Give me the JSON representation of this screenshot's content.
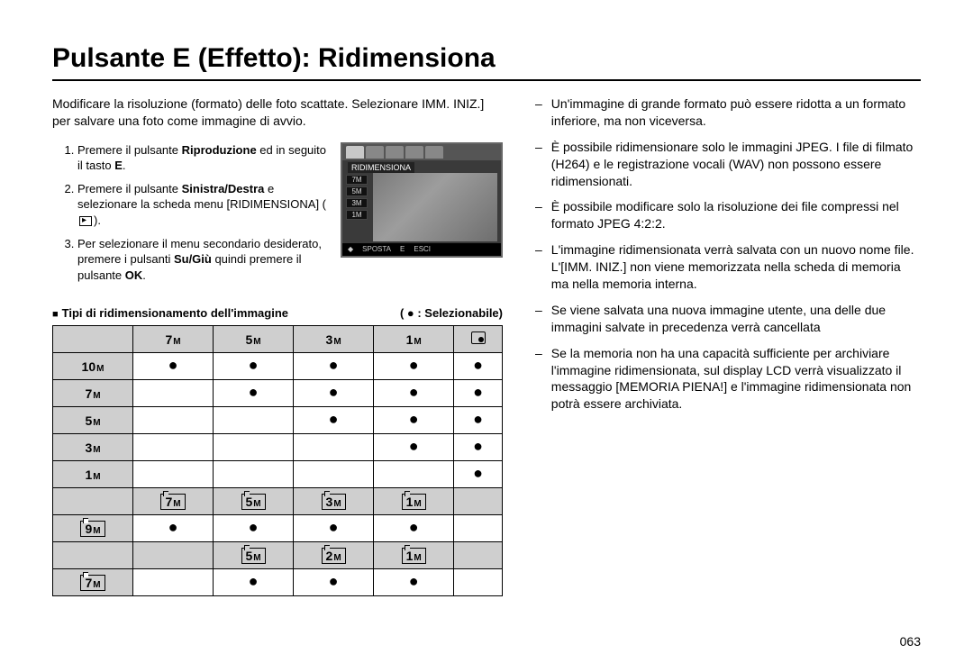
{
  "title": "Pulsante E (Effetto): Ridimensiona",
  "intro": "Modificare la risoluzione (formato) delle foto scattate. Selezionare IMM. INIZ.] per salvare una foto come immagine di avvio.",
  "steps": [
    {
      "num": "1.",
      "pre": "Premere il pulsante ",
      "bold": "Riproduzione",
      "post": " ed in seguito il tasto ",
      "bold2": "E",
      "post2": "."
    },
    {
      "num": "2.",
      "pre": "Premere il pulsante ",
      "bold": "Sinistra/Destra",
      "post": " e selezionare la scheda menu [RIDIMENSIONA] (",
      "icon": true,
      "post2": ")."
    },
    {
      "num": "3.",
      "pre": "Per selezionare il menu secondario desiderato, premere i pulsanti ",
      "bold": "Su/Giù",
      "post": " quindi premere il pulsante ",
      "bold2": "OK",
      "post2": "."
    }
  ],
  "screenshot": {
    "label": "RIDIMENSIONA",
    "side": [
      "7M",
      "5M",
      "3M",
      "1M"
    ],
    "footer_left": "SPOSTA",
    "footer_e": "E",
    "footer_right": "ESCI"
  },
  "subhead_left": "Tipi di ridimensionamento dell'immagine",
  "subhead_right": "(  ●  : Selezionabile)",
  "table1": {
    "cols": [
      "7",
      "5",
      "3",
      "1",
      "start"
    ],
    "rows": [
      {
        "h": "10",
        "cells": [
          true,
          true,
          true,
          true,
          true
        ]
      },
      {
        "h": "7",
        "cells": [
          null,
          true,
          true,
          true,
          true
        ]
      },
      {
        "h": "5",
        "cells": [
          null,
          null,
          true,
          true,
          true
        ]
      },
      {
        "h": "3",
        "cells": [
          null,
          null,
          null,
          true,
          true
        ]
      },
      {
        "h": "1",
        "cells": [
          null,
          null,
          null,
          null,
          true
        ]
      }
    ]
  },
  "table2": {
    "cols": [
      "7",
      "5",
      "3",
      "1"
    ],
    "row": {
      "h": "9",
      "cells": [
        true,
        true,
        true,
        true
      ]
    }
  },
  "table3": {
    "cols": [
      "5",
      "2",
      "1"
    ],
    "row": {
      "h": "7",
      "cells": [
        true,
        true,
        true
      ]
    }
  },
  "notes": [
    "Un'immagine di grande formato può essere ridotta a un formato inferiore, ma non viceversa.",
    "È possibile ridimensionare solo le immagini JPEG. I file di filmato (H264) e le registrazione vocali (WAV) non possono essere ridimensionati.",
    "È possibile modificare solo la risoluzione dei file compressi nel formato JPEG 4:2:2.",
    "L'immagine ridimensionata verrà salvata con un nuovo nome file. L'[IMM. INIZ.] non viene memorizzata nella scheda di memoria ma nella memoria interna.",
    "Se viene salvata una nuova immagine utente, una delle due immagini salvate in precedenza verrà cancellata",
    "Se la memoria non ha una capacità sufficiente per archiviare l'immagine ridimensionata, sul display LCD verrà visualizzato il messaggio [MEMORIA PIENA!] e l'immagine ridimensionata non potrà essere archiviata."
  ],
  "pagenum": "063",
  "colors": {
    "header_bg": "#cfcfcf"
  }
}
